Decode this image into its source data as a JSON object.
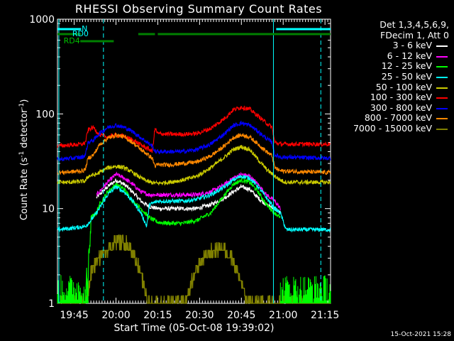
{
  "chart_data": {
    "type": "line",
    "title": "RHESSI Observing Summary Count Rates",
    "xlabel": "Start Time (05-Oct-08 19:39:02)",
    "ylabel_main": "Count Rate (s",
    "ylabel_sup": "-1",
    "ylabel_rest": " detector",
    "ylabel_end": ")",
    "y_scale": "log",
    "ylim": [
      1,
      1000
    ],
    "y_ticks": [
      "1",
      "10",
      "100",
      "1000"
    ],
    "x_range_min": [
      0,
      98
    ],
    "x_ticks": [
      {
        "t": 6,
        "label": "19:45"
      },
      {
        "t": 21,
        "label": "20:00"
      },
      {
        "t": 36,
        "label": "20:15"
      },
      {
        "t": 51,
        "label": "20:30"
      },
      {
        "t": 66,
        "label": "20:45"
      },
      {
        "t": 81,
        "label": "21:00"
      },
      {
        "t": 96,
        "label": "21:15"
      }
    ],
    "legend_header": [
      "Det 1,3,4,5,6,9,",
      "FDecim 1, Att 0"
    ],
    "series": [
      {
        "name": "3 - 6 keV",
        "color": "#ffffff",
        "pts": [
          [
            14,
            13
          ],
          [
            15,
            14
          ],
          [
            18,
            17
          ],
          [
            21,
            20
          ],
          [
            24,
            18
          ],
          [
            27,
            15
          ],
          [
            30,
            12
          ],
          [
            33,
            10.5
          ],
          [
            36,
            10
          ],
          [
            40,
            10
          ],
          [
            45,
            10
          ],
          [
            50,
            10
          ],
          [
            55,
            11
          ],
          [
            60,
            13
          ],
          [
            63,
            15
          ],
          [
            66,
            17
          ],
          [
            69,
            16
          ],
          [
            72,
            13
          ],
          [
            75,
            11
          ],
          [
            78,
            10
          ],
          [
            80,
            9
          ]
        ]
      },
      {
        "name": "6 - 12 keV",
        "color": "#ff00ff",
        "pts": [
          [
            14,
            14
          ],
          [
            15,
            15
          ],
          [
            18,
            19
          ],
          [
            21,
            23
          ],
          [
            24,
            21
          ],
          [
            27,
            18
          ],
          [
            30,
            15
          ],
          [
            33,
            14
          ],
          [
            36,
            14
          ],
          [
            40,
            14
          ],
          [
            45,
            14
          ],
          [
            50,
            14
          ],
          [
            55,
            15
          ],
          [
            60,
            18
          ],
          [
            63,
            21
          ],
          [
            66,
            23
          ],
          [
            69,
            22
          ],
          [
            72,
            18
          ],
          [
            75,
            14
          ],
          [
            78,
            12
          ],
          [
            80,
            10
          ]
        ]
      },
      {
        "name": "12 - 25 keV",
        "color": "#00ff00",
        "pts": [
          [
            10,
            1.5
          ],
          [
            11,
            1.8
          ],
          [
            11.5,
            4
          ],
          [
            12,
            8
          ],
          [
            14,
            9
          ],
          [
            15,
            11
          ],
          [
            18,
            15
          ],
          [
            21,
            18
          ],
          [
            24,
            16
          ],
          [
            27,
            12
          ],
          [
            30,
            10
          ],
          [
            33,
            8
          ],
          [
            36,
            7.2
          ],
          [
            40,
            7
          ],
          [
            45,
            7
          ],
          [
            50,
            7.5
          ],
          [
            55,
            9
          ],
          [
            60,
            14
          ],
          [
            63,
            18
          ],
          [
            66,
            20
          ],
          [
            69,
            19
          ],
          [
            72,
            15
          ],
          [
            75,
            11
          ],
          [
            78,
            9
          ],
          [
            80,
            8
          ]
        ]
      },
      {
        "name": "25 - 50 keV",
        "color": "#00ffff",
        "pts": [
          [
            0,
            6
          ],
          [
            5,
            6.2
          ],
          [
            10,
            6.5
          ],
          [
            12,
            7.5
          ],
          [
            14,
            9
          ],
          [
            15,
            10
          ],
          [
            18,
            14
          ],
          [
            21,
            17
          ],
          [
            24,
            15
          ],
          [
            27,
            12
          ],
          [
            30,
            9
          ],
          [
            32,
            6.5
          ],
          [
            33,
            11
          ],
          [
            36,
            12
          ],
          [
            40,
            12
          ],
          [
            45,
            12
          ],
          [
            50,
            12.5
          ],
          [
            55,
            14
          ],
          [
            60,
            17
          ],
          [
            63,
            20
          ],
          [
            66,
            22
          ],
          [
            69,
            21
          ],
          [
            72,
            17
          ],
          [
            75,
            13
          ],
          [
            78,
            10
          ],
          [
            80,
            9
          ],
          [
            82,
            6
          ],
          [
            98,
            6
          ]
        ]
      },
      {
        "name": "50 - 100 keV",
        "color": "#cccc00",
        "pts": [
          [
            0,
            19
          ],
          [
            5,
            19
          ],
          [
            10,
            19.5
          ],
          [
            11,
            22
          ],
          [
            14,
            23
          ],
          [
            15,
            24
          ],
          [
            18,
            27
          ],
          [
            21,
            28
          ],
          [
            24,
            27
          ],
          [
            27,
            24
          ],
          [
            30,
            21
          ],
          [
            33,
            19
          ],
          [
            36,
            18.5
          ],
          [
            40,
            19
          ],
          [
            45,
            20
          ],
          [
            50,
            22
          ],
          [
            55,
            27
          ],
          [
            60,
            35
          ],
          [
            63,
            42
          ],
          [
            66,
            45
          ],
          [
            69,
            42
          ],
          [
            72,
            33
          ],
          [
            75,
            26
          ],
          [
            78,
            22
          ],
          [
            80,
            20
          ],
          [
            82,
            19
          ],
          [
            98,
            19
          ]
        ]
      },
      {
        "name": "100 - 300 keV",
        "color": "#ff0000",
        "pts": [
          [
            0,
            46
          ],
          [
            5,
            47
          ],
          [
            9,
            48
          ],
          [
            10,
            50
          ],
          [
            11,
            68
          ],
          [
            13,
            72
          ],
          [
            15,
            60
          ],
          [
            18,
            57
          ],
          [
            21,
            60
          ],
          [
            24,
            58
          ],
          [
            27,
            53
          ],
          [
            30,
            47
          ],
          [
            33,
            42
          ],
          [
            34,
            40
          ],
          [
            35,
            70
          ],
          [
            36,
            62
          ],
          [
            40,
            61
          ],
          [
            45,
            61
          ],
          [
            50,
            62
          ],
          [
            55,
            70
          ],
          [
            60,
            90
          ],
          [
            63,
            110
          ],
          [
            66,
            118
          ],
          [
            69,
            112
          ],
          [
            72,
            95
          ],
          [
            75,
            80
          ],
          [
            77,
            72
          ],
          [
            78,
            50
          ],
          [
            80,
            48
          ],
          [
            98,
            48
          ]
        ]
      },
      {
        "name": "300 - 800 keV",
        "color": "#0000ff",
        "pts": [
          [
            0,
            33
          ],
          [
            5,
            34
          ],
          [
            9,
            35
          ],
          [
            10,
            37
          ],
          [
            11,
            50
          ],
          [
            13,
            53
          ],
          [
            15,
            62
          ],
          [
            18,
            72
          ],
          [
            21,
            76
          ],
          [
            24,
            72
          ],
          [
            27,
            65
          ],
          [
            30,
            56
          ],
          [
            33,
            48
          ],
          [
            34,
            46
          ],
          [
            35,
            40
          ],
          [
            36,
            40
          ],
          [
            40,
            40
          ],
          [
            45,
            40
          ],
          [
            50,
            42
          ],
          [
            55,
            48
          ],
          [
            60,
            62
          ],
          [
            63,
            75
          ],
          [
            66,
            80
          ],
          [
            69,
            76
          ],
          [
            72,
            65
          ],
          [
            75,
            55
          ],
          [
            77,
            50
          ],
          [
            78,
            37
          ],
          [
            80,
            35
          ],
          [
            98,
            34
          ]
        ]
      },
      {
        "name": "800 - 7000 keV",
        "color": "#ff8800",
        "pts": [
          [
            0,
            24
          ],
          [
            5,
            24.5
          ],
          [
            9,
            25
          ],
          [
            10,
            26
          ],
          [
            11,
            34
          ],
          [
            13,
            37
          ],
          [
            15,
            47
          ],
          [
            18,
            55
          ],
          [
            21,
            60
          ],
          [
            24,
            57
          ],
          [
            27,
            50
          ],
          [
            30,
            42
          ],
          [
            33,
            36
          ],
          [
            34,
            34
          ],
          [
            35,
            28
          ],
          [
            36,
            29
          ],
          [
            40,
            29
          ],
          [
            45,
            30
          ],
          [
            50,
            31
          ],
          [
            55,
            36
          ],
          [
            60,
            46
          ],
          [
            63,
            56
          ],
          [
            66,
            60
          ],
          [
            69,
            57
          ],
          [
            72,
            48
          ],
          [
            75,
            40
          ],
          [
            77,
            36
          ],
          [
            78,
            27
          ],
          [
            80,
            25
          ],
          [
            98,
            24
          ]
        ]
      },
      {
        "name": "7000 - 15000 keV",
        "color": "#808000",
        "pts": [
          [
            0,
            1
          ],
          [
            10,
            1
          ],
          [
            11,
            1.3
          ],
          [
            12,
            2
          ],
          [
            13,
            2.5
          ],
          [
            15,
            3
          ],
          [
            17,
            3.5
          ],
          [
            19,
            4
          ],
          [
            21,
            4.5
          ],
          [
            24,
            4.5
          ],
          [
            26,
            4
          ],
          [
            27,
            3.5
          ],
          [
            28,
            3
          ],
          [
            29,
            2.5
          ],
          [
            30,
            2
          ],
          [
            31,
            1.5
          ],
          [
            32,
            1.2
          ],
          [
            33,
            1
          ],
          [
            46,
            1
          ],
          [
            47,
            1.2
          ],
          [
            48,
            1.6
          ],
          [
            49,
            2
          ],
          [
            50,
            2.4
          ],
          [
            52,
            2.8
          ],
          [
            54,
            3.3
          ],
          [
            56,
            3.6
          ],
          [
            58,
            3.8
          ],
          [
            60,
            3.6
          ],
          [
            62,
            3.2
          ],
          [
            63,
            2.8
          ],
          [
            64,
            2.4
          ],
          [
            65,
            2
          ],
          [
            66,
            1.6
          ],
          [
            67,
            1.3
          ],
          [
            68,
            1
          ],
          [
            98,
            1
          ]
        ]
      }
    ],
    "bars": [
      {
        "label": "N",
        "color": "#00ffff",
        "segments": [
          [
            0,
            8.5
          ],
          [
            78.5,
            98
          ]
        ],
        "y": 41
      },
      {
        "label": "RD0",
        "color": "#00ffff",
        "segments": [],
        "y": 47
      },
      {
        "label": "RD4",
        "color": "#008000",
        "segments": [
          [
            0,
            8.5
          ],
          [
            29,
            35
          ],
          [
            36,
            98
          ]
        ],
        "y": 48
      }
    ],
    "vlines_solid": [
      0.5,
      77.5
    ],
    "vlines_dashed": [
      16.5,
      94.5
    ],
    "footer": "15-Oct-2021 15:28"
  }
}
